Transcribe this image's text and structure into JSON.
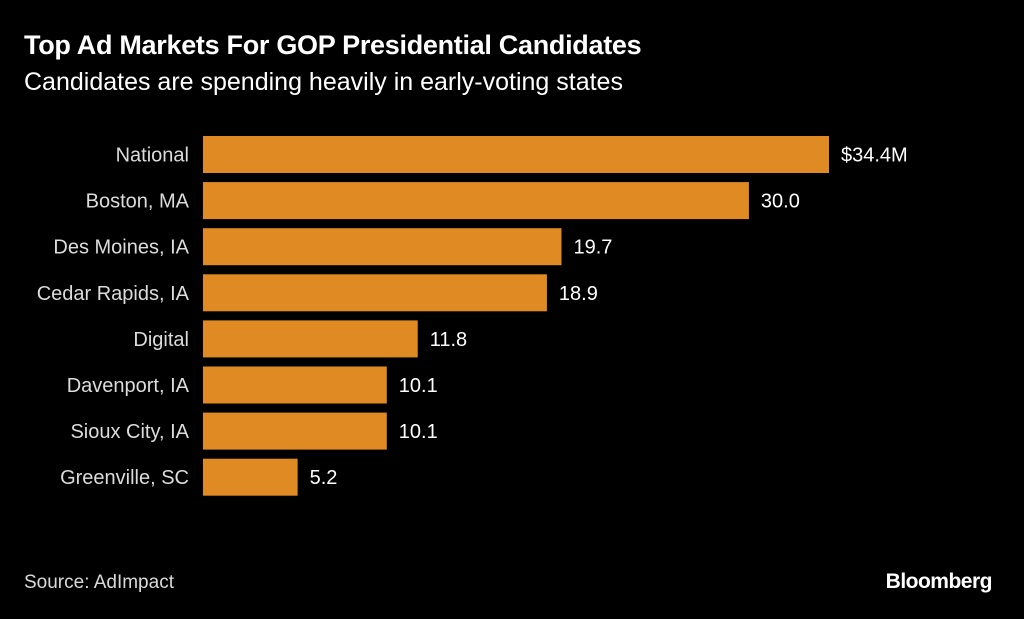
{
  "title": "Top Ad Markets For GOP Presidential Candidates",
  "subtitle": "Candidates are spending heavily in early-voting states",
  "source": "Source: AdImpact",
  "brand": "Bloomberg",
  "colors": {
    "bar": "#e08a24",
    "background": "#000000",
    "text": "#ffffff"
  },
  "chart_data": {
    "type": "bar",
    "orientation": "horizontal",
    "categories": [
      "National",
      "Boston, MA",
      "Des Moines, IA",
      "Cedar Rapids, IA",
      "Digital",
      "Davenport, IA",
      "Sioux City, IA",
      "Greenville, SC"
    ],
    "values": [
      34.4,
      30.0,
      19.7,
      18.9,
      11.8,
      10.1,
      10.1,
      5.2
    ],
    "value_labels": [
      "$34.4M",
      "30.0",
      "19.7",
      "18.9",
      "11.8",
      "10.1",
      "10.1",
      "5.2"
    ],
    "xlim": [
      0,
      34.4
    ],
    "grid": false,
    "legend": "none"
  }
}
